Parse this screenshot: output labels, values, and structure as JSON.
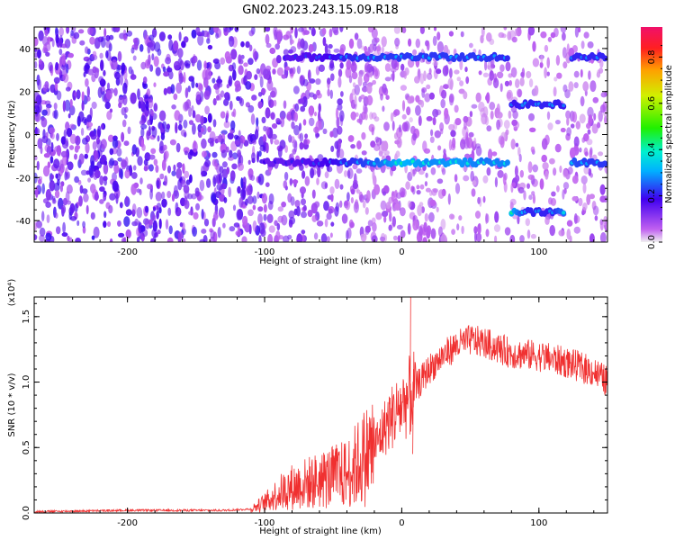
{
  "chart_data": [
    {
      "type": "heatmap",
      "title": "GN02.2023.243.15.09.R18",
      "xlabel": "Height of straight line (km)",
      "ylabel": "Frequency (Hz)",
      "xlim": [
        -268,
        150
      ],
      "ylim": [
        -50,
        50
      ],
      "xticks": [
        -200,
        -100,
        0,
        100
      ],
      "xtick_labels": [
        "-200",
        "-100",
        "0",
        "100"
      ],
      "yticks": [
        40,
        20,
        0,
        -20,
        -40
      ],
      "ytick_labels": [
        "40",
        "20",
        "0",
        "-20",
        "-40"
      ],
      "colorbar": {
        "label": "Normalized spectral amplitude",
        "ticks": [
          0.0,
          0.2,
          0.4,
          0.6,
          0.8
        ],
        "tick_labels": [
          "0.0",
          "0.2",
          "0.4",
          "0.6",
          "0.8"
        ],
        "range": [
          0,
          0.93
        ]
      },
      "ridges": [
        {
          "freq": 36,
          "x": [
            -85,
            -60,
            -40,
            -20,
            0,
            20,
            40,
            60,
            79
          ],
          "amp": [
            0.22,
            0.25,
            0.3,
            0.32,
            0.32,
            0.32,
            0.32,
            0.32,
            0.3
          ]
        },
        {
          "freq": -13,
          "x": [
            -100,
            -80,
            -60,
            -40,
            -20,
            0,
            20,
            40,
            60,
            79
          ],
          "amp": [
            0.2,
            0.22,
            0.25,
            0.3,
            0.35,
            0.45,
            0.4,
            0.42,
            0.38,
            0.4
          ]
        },
        {
          "freq": 14,
          "x": [
            80,
            90,
            100,
            110,
            120
          ],
          "amp": [
            0.28,
            0.3,
            0.3,
            0.3,
            0.28
          ]
        },
        {
          "freq": -36,
          "x": [
            80,
            90,
            100,
            110,
            120
          ],
          "amp": [
            0.45,
            0.3,
            0.3,
            0.3,
            0.4
          ]
        },
        {
          "freq": 36,
          "x": [
            124,
            135,
            150
          ],
          "amp": [
            0.3,
            0.3,
            0.3
          ]
        },
        {
          "freq": -13,
          "x": [
            124,
            135,
            150
          ],
          "amp": [
            0.35,
            0.32,
            0.32
          ]
        }
      ]
    },
    {
      "type": "line",
      "xlabel": "Height of straight line (km)",
      "ylabel": "SNR (10 * v/v)",
      "y_multiplier": "(x10⁴)",
      "xlim": [
        -268,
        150
      ],
      "ylim": [
        0,
        1.65
      ],
      "xticks": [
        -200,
        -100,
        0,
        100
      ],
      "xtick_labels": [
        "-200",
        "-100",
        "0",
        "100"
      ],
      "yticks": [
        0.0,
        0.5,
        1.0,
        1.5
      ],
      "ytick_labels": [
        "0.0",
        "0.5",
        "1.0",
        "1.5"
      ],
      "color": "#f03030",
      "x": [
        -268,
        -200,
        -130,
        -110,
        -100,
        -90,
        -80,
        -60,
        -40,
        -30,
        -20,
        -10,
        0,
        10,
        20,
        30,
        40,
        50,
        60,
        70,
        80,
        100,
        120,
        140,
        150
      ],
      "y": [
        0.01,
        0.02,
        0.02,
        0.03,
        0.08,
        0.15,
        0.2,
        0.25,
        0.3,
        0.4,
        0.5,
        0.7,
        0.82,
        0.95,
        1.1,
        1.2,
        1.28,
        1.32,
        1.3,
        1.26,
        1.22,
        1.2,
        1.15,
        1.08,
        1.0
      ]
    }
  ]
}
